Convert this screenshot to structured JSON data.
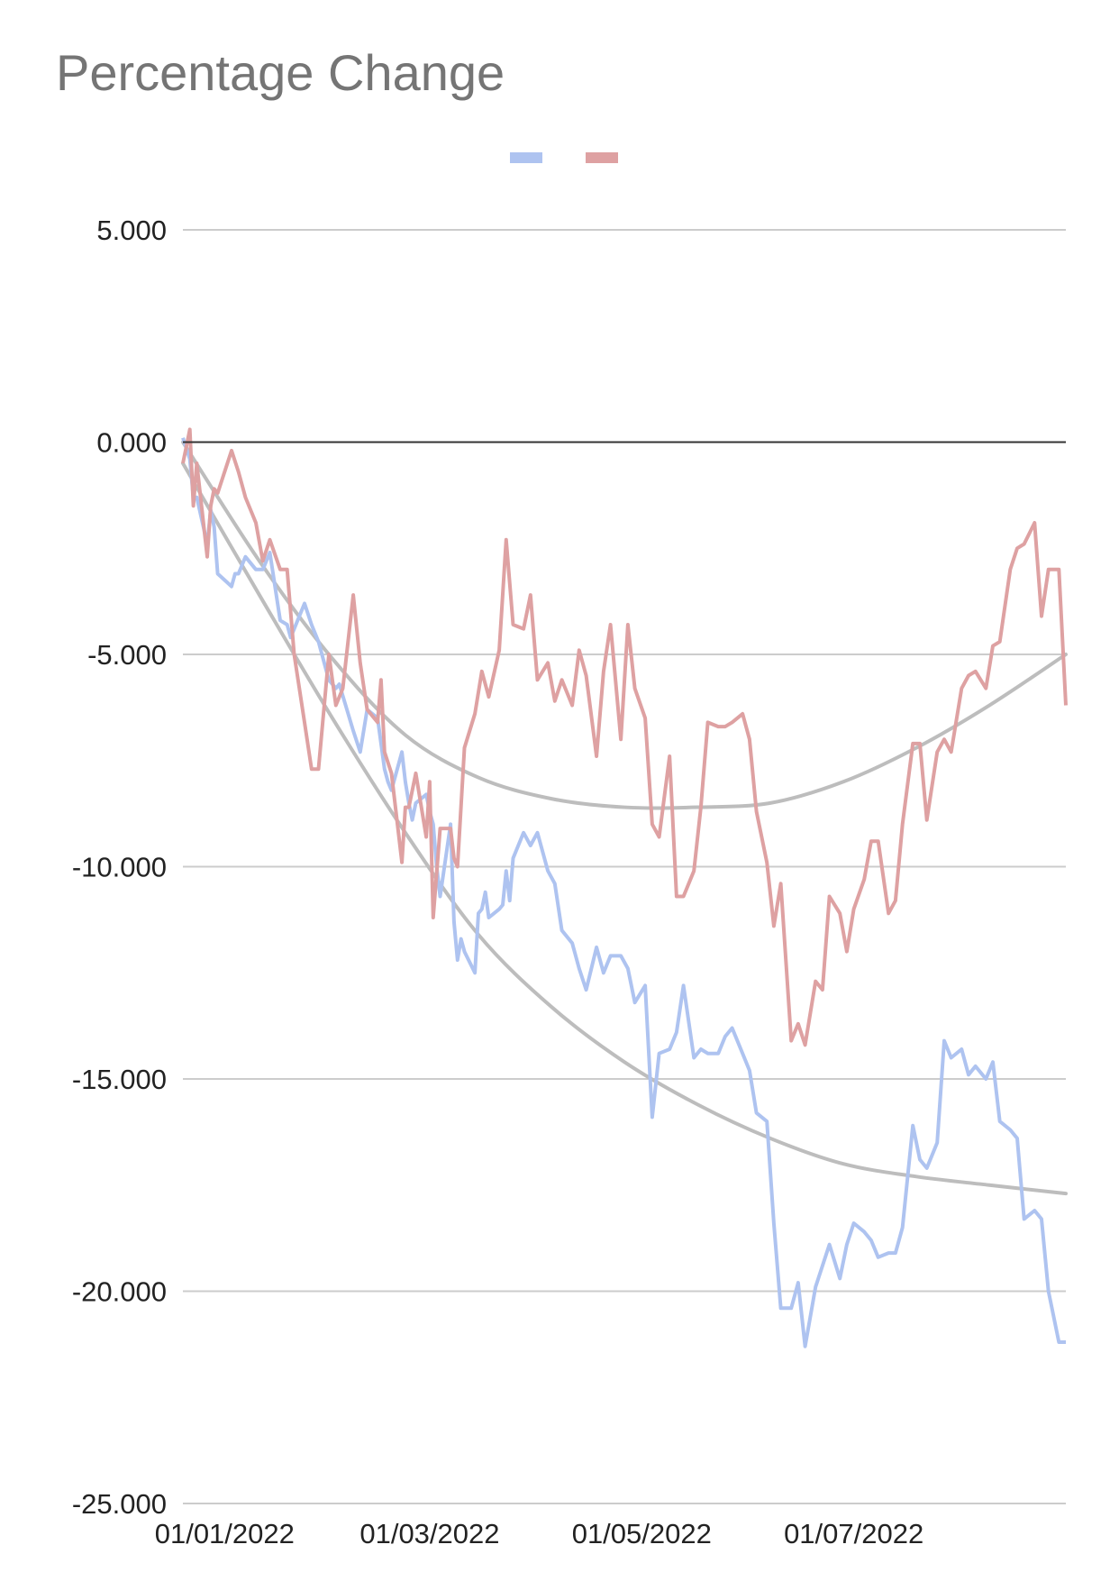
{
  "chart_data": {
    "type": "line",
    "title": "Percentage Change",
    "xlabel": "",
    "ylabel": "",
    "x_range": [
      "2021-12-20",
      "2022-08-31"
    ],
    "ylim": [
      -25,
      5
    ],
    "y_ticks": [
      5,
      0,
      -5,
      -10,
      -15,
      -20,
      -25
    ],
    "y_tick_labels": [
      "5.000",
      "0.000",
      "-5.000",
      "-10.000",
      "-15.000",
      "-20.000",
      "-25.000"
    ],
    "x_ticks": [
      "2022-01-01",
      "2022-03-01",
      "2022-05-01",
      "2022-07-01"
    ],
    "x_tick_labels": [
      "01/01/2022",
      "01/03/2022",
      "01/05/2022",
      "01/07/2022"
    ],
    "grid": true,
    "legend": {
      "position": "top-center"
    },
    "colors": {
      "series_blue": "#aec3f0",
      "series_red": "#dea1a2",
      "trend": "#bdbdbd",
      "grid": "#cccccc",
      "zero_line": "#333333"
    },
    "series": [
      {
        "color": "#aec3f0",
        "x": [
          "2021-12-20",
          "2021-12-22",
          "2021-12-23",
          "2021-12-24",
          "2021-12-27",
          "2021-12-28",
          "2021-12-29",
          "2021-12-30",
          "2022-01-03",
          "2022-01-04",
          "2022-01-05",
          "2022-01-07",
          "2022-01-10",
          "2022-01-12",
          "2022-01-14",
          "2022-01-17",
          "2022-01-19",
          "2022-01-20",
          "2022-01-21",
          "2022-01-24",
          "2022-01-26",
          "2022-01-28",
          "2022-01-31",
          "2022-02-02",
          "2022-02-03",
          "2022-02-07",
          "2022-02-09",
          "2022-02-11",
          "2022-02-14",
          "2022-02-16",
          "2022-02-17",
          "2022-02-18",
          "2022-02-21",
          "2022-02-22",
          "2022-02-23",
          "2022-02-24",
          "2022-02-25",
          "2022-02-28",
          "2022-03-01",
          "2022-03-02",
          "2022-03-03",
          "2022-03-04",
          "2022-03-07",
          "2022-03-08",
          "2022-03-09",
          "2022-03-10",
          "2022-03-11",
          "2022-03-14",
          "2022-03-15",
          "2022-03-16",
          "2022-03-17",
          "2022-03-18",
          "2022-03-21",
          "2022-03-22",
          "2022-03-23",
          "2022-03-24",
          "2022-03-25",
          "2022-03-28",
          "2022-03-30",
          "2022-04-01",
          "2022-04-04",
          "2022-04-06",
          "2022-04-08",
          "2022-04-11",
          "2022-04-13",
          "2022-04-15",
          "2022-04-18",
          "2022-04-20",
          "2022-04-22",
          "2022-04-25",
          "2022-04-27",
          "2022-04-29",
          "2022-05-02",
          "2022-05-04",
          "2022-05-06",
          "2022-05-09",
          "2022-05-11",
          "2022-05-13",
          "2022-05-16",
          "2022-05-18",
          "2022-05-20",
          "2022-05-23",
          "2022-05-25",
          "2022-05-27",
          "2022-05-30",
          "2022-06-01",
          "2022-06-03",
          "2022-06-06",
          "2022-06-08",
          "2022-06-10",
          "2022-06-13",
          "2022-06-15",
          "2022-06-17",
          "2022-06-20",
          "2022-06-22",
          "2022-06-24",
          "2022-06-27",
          "2022-06-29",
          "2022-07-01",
          "2022-07-04",
          "2022-07-06",
          "2022-07-08",
          "2022-07-11",
          "2022-07-13",
          "2022-07-15",
          "2022-07-18",
          "2022-07-20",
          "2022-07-22",
          "2022-07-25",
          "2022-07-27",
          "2022-07-29",
          "2022-08-01",
          "2022-08-03",
          "2022-08-05",
          "2022-08-08",
          "2022-08-10",
          "2022-08-12",
          "2022-08-15",
          "2022-08-17",
          "2022-08-19",
          "2022-08-22",
          "2022-08-24",
          "2022-08-26",
          "2022-08-29",
          "2022-08-31"
        ],
        "values": [
          0.1,
          -0.4,
          -1.3,
          -1.3,
          -2.4,
          -1.6,
          -2.0,
          -3.1,
          -3.4,
          -3.1,
          -3.1,
          -2.7,
          -3.0,
          -3.0,
          -2.6,
          -4.2,
          -4.3,
          -4.6,
          -4.4,
          -3.8,
          -4.3,
          -4.7,
          -5.6,
          -5.8,
          -5.7,
          -6.8,
          -7.3,
          -6.3,
          -6.5,
          -7.7,
          -8.0,
          -8.2,
          -7.3,
          -8.0,
          -8.5,
          -8.9,
          -8.5,
          -8.3,
          -8.7,
          -9.0,
          -10.0,
          -10.7,
          -9.0,
          -11.3,
          -12.2,
          -11.7,
          -12.0,
          -12.5,
          -11.1,
          -11.0,
          -10.6,
          -11.2,
          -11.0,
          -10.9,
          -10.1,
          -10.8,
          -9.8,
          -9.2,
          -9.5,
          -9.2,
          -10.1,
          -10.4,
          -11.5,
          -11.8,
          -12.4,
          -12.9,
          -11.9,
          -12.5,
          -12.1,
          -12.1,
          -12.4,
          -13.2,
          -12.8,
          -15.9,
          -14.4,
          -14.3,
          -13.9,
          -12.8,
          -14.5,
          -14.3,
          -14.4,
          -14.4,
          -14.0,
          -13.8,
          -14.4,
          -14.8,
          -15.8,
          -16.0,
          -18.4,
          -20.4,
          -20.4,
          -19.8,
          -21.3,
          -19.9,
          -19.4,
          -18.9,
          -19.7,
          -18.9,
          -18.4,
          -18.6,
          -18.8,
          -19.2,
          -19.1,
          -19.1,
          -18.5,
          -16.1,
          -16.9,
          -17.1,
          -16.5,
          -14.1,
          -14.5,
          -14.3,
          -14.9,
          -14.7,
          -15.0,
          -14.6,
          -16.0,
          -16.2,
          -16.4,
          -18.3,
          -18.1,
          -18.3,
          -20.0,
          -21.2,
          -21.2
        ]
      },
      {
        "color": "#dea1a2",
        "x": [
          "2021-12-20",
          "2021-12-21",
          "2021-12-22",
          "2021-12-23",
          "2021-12-24",
          "2021-12-27",
          "2021-12-28",
          "2021-12-29",
          "2021-12-30",
          "2022-01-03",
          "2022-01-05",
          "2022-01-07",
          "2022-01-10",
          "2022-01-12",
          "2022-01-14",
          "2022-01-17",
          "2022-01-19",
          "2022-01-21",
          "2022-01-24",
          "2022-01-26",
          "2022-01-28",
          "2022-01-31",
          "2022-02-02",
          "2022-02-04",
          "2022-02-07",
          "2022-02-09",
          "2022-02-11",
          "2022-02-14",
          "2022-02-15",
          "2022-02-16",
          "2022-02-18",
          "2022-02-21",
          "2022-02-22",
          "2022-02-23",
          "2022-02-25",
          "2022-02-28",
          "2022-03-01",
          "2022-03-02",
          "2022-03-04",
          "2022-03-07",
          "2022-03-08",
          "2022-03-09",
          "2022-03-11",
          "2022-03-14",
          "2022-03-16",
          "2022-03-18",
          "2022-03-21",
          "2022-03-23",
          "2022-03-25",
          "2022-03-28",
          "2022-03-30",
          "2022-04-01",
          "2022-04-04",
          "2022-04-06",
          "2022-04-08",
          "2022-04-11",
          "2022-04-13",
          "2022-04-15",
          "2022-04-18",
          "2022-04-20",
          "2022-04-22",
          "2022-04-25",
          "2022-04-27",
          "2022-04-29",
          "2022-05-02",
          "2022-05-04",
          "2022-05-06",
          "2022-05-09",
          "2022-05-11",
          "2022-05-13",
          "2022-05-16",
          "2022-05-18",
          "2022-05-20",
          "2022-05-23",
          "2022-05-25",
          "2022-05-27",
          "2022-05-30",
          "2022-06-01",
          "2022-06-03",
          "2022-06-06",
          "2022-06-08",
          "2022-06-10",
          "2022-06-13",
          "2022-06-15",
          "2022-06-17",
          "2022-06-20",
          "2022-06-22",
          "2022-06-24",
          "2022-06-27",
          "2022-06-29",
          "2022-07-01",
          "2022-07-04",
          "2022-07-06",
          "2022-07-08",
          "2022-07-11",
          "2022-07-13",
          "2022-07-15",
          "2022-07-18",
          "2022-07-20",
          "2022-07-22",
          "2022-07-25",
          "2022-07-27",
          "2022-07-29",
          "2022-08-01",
          "2022-08-03",
          "2022-08-05",
          "2022-08-08",
          "2022-08-10",
          "2022-08-12",
          "2022-08-15",
          "2022-08-17",
          "2022-08-19",
          "2022-08-22",
          "2022-08-24",
          "2022-08-26",
          "2022-08-29",
          "2022-08-31"
        ],
        "values": [
          -0.5,
          -0.1,
          0.3,
          -1.5,
          -0.5,
          -2.7,
          -1.5,
          -1.1,
          -1.2,
          -0.2,
          -0.7,
          -1.3,
          -1.9,
          -2.8,
          -2.3,
          -3.0,
          -3.0,
          -5.0,
          -6.6,
          -7.7,
          -7.7,
          -5.0,
          -6.2,
          -5.8,
          -3.6,
          -5.2,
          -6.3,
          -6.6,
          -5.6,
          -7.3,
          -7.8,
          -9.9,
          -8.6,
          -8.6,
          -7.8,
          -9.3,
          -8.0,
          -11.2,
          -9.1,
          -9.1,
          -9.8,
          -10.0,
          -7.2,
          -6.4,
          -5.4,
          -6.0,
          -4.9,
          -2.3,
          -4.3,
          -4.4,
          -3.6,
          -5.6,
          -5.2,
          -6.1,
          -5.6,
          -6.2,
          -4.9,
          -5.5,
          -7.4,
          -5.4,
          -4.3,
          -7.0,
          -4.3,
          -5.8,
          -6.5,
          -9.0,
          -9.3,
          -7.4,
          -10.7,
          -10.7,
          -10.1,
          -8.6,
          -6.6,
          -6.7,
          -6.7,
          -6.6,
          -6.4,
          -7.0,
          -8.7,
          -9.9,
          -11.4,
          -10.4,
          -14.1,
          -13.7,
          -14.2,
          -12.7,
          -12.9,
          -10.7,
          -11.1,
          -12.0,
          -11.0,
          -10.3,
          -9.4,
          -9.4,
          -11.1,
          -10.8,
          -9.0,
          -7.1,
          -7.1,
          -8.9,
          -7.3,
          -7.0,
          -7.3,
          -5.8,
          -5.5,
          -5.4,
          -5.8,
          -4.8,
          -4.7,
          -3.0,
          -2.5,
          -2.4,
          -1.9,
          -4.1,
          -3.0,
          -3.0,
          -6.2
        ]
      }
    ],
    "trendlines": [
      {
        "type": "polynomial",
        "color": "#bdbdbd",
        "points": [
          [
            "2021-12-20",
            -0.5
          ],
          [
            "2022-01-11",
            -3.6
          ],
          [
            "2022-02-01",
            -6.5
          ],
          [
            "2022-02-22",
            -9.2
          ],
          [
            "2022-03-15",
            -11.6
          ],
          [
            "2022-04-05",
            -13.3
          ],
          [
            "2022-04-26",
            -14.6
          ],
          [
            "2022-05-17",
            -15.6
          ],
          [
            "2022-06-07",
            -16.4
          ],
          [
            "2022-06-28",
            -17.0
          ],
          [
            "2022-07-19",
            -17.3
          ],
          [
            "2022-08-09",
            -17.5
          ],
          [
            "2022-08-31",
            -17.7
          ]
        ]
      },
      {
        "type": "polynomial",
        "color": "#bdbdbd",
        "points": [
          [
            "2021-12-20",
            0.0
          ],
          [
            "2022-01-11",
            -2.8
          ],
          [
            "2022-02-01",
            -5.1
          ],
          [
            "2022-02-22",
            -6.9
          ],
          [
            "2022-03-15",
            -7.9
          ],
          [
            "2022-04-05",
            -8.4
          ],
          [
            "2022-04-26",
            -8.6
          ],
          [
            "2022-05-17",
            -8.6
          ],
          [
            "2022-06-07",
            -8.5
          ],
          [
            "2022-06-28",
            -8.0
          ],
          [
            "2022-07-19",
            -7.2
          ],
          [
            "2022-08-09",
            -6.2
          ],
          [
            "2022-08-31",
            -5.0
          ]
        ]
      }
    ]
  }
}
